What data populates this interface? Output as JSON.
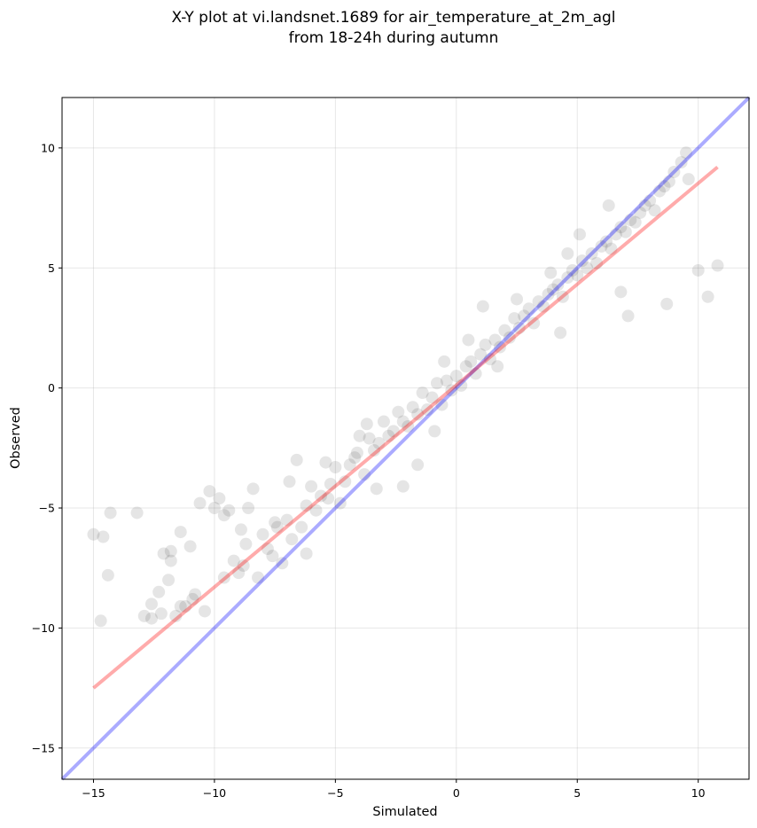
{
  "chart_data": {
    "type": "scatter",
    "title_line1": "X-Y plot at vi.landsnet.1689 for air_temperature_at_2m_agl",
    "title_line2": "from 18-24h during autumn",
    "xlabel": "Simulated",
    "ylabel": "Observed",
    "xlim": [
      -16.3,
      12.1
    ],
    "ylim": [
      -16.3,
      12.1
    ],
    "xticks": [
      -15,
      -10,
      -5,
      0,
      5,
      10
    ],
    "yticks": [
      -15,
      -10,
      -5,
      0,
      5,
      10
    ],
    "xtick_labels": [
      "−15",
      "−10",
      "−5",
      "0",
      "5",
      "10"
    ],
    "ytick_labels": [
      "−15",
      "−10",
      "−5",
      "0",
      "5",
      "10"
    ],
    "grid": true,
    "point_color": "#000000",
    "point_alpha": 0.1,
    "lines": [
      {
        "role": "one-to-one",
        "color": "#0000ff",
        "alpha": 0.33,
        "x": [
          -16.3,
          12.1
        ],
        "y": [
          -16.3,
          12.1
        ]
      },
      {
        "role": "regression",
        "color": "#ff0000",
        "alpha": 0.33,
        "x": [
          -15.0,
          10.8
        ],
        "y": [
          -12.5,
          9.2
        ]
      }
    ],
    "series": [
      {
        "x": [
          -15.0,
          -14.7,
          -14.6,
          -14.4,
          -14.3,
          -13.2,
          -12.9,
          -12.6,
          -12.3,
          -12.1,
          -11.9,
          -11.8,
          -11.6,
          -11.4,
          -11.2,
          -11.0,
          -10.8,
          -10.6,
          -10.4,
          -10.2,
          -10.0,
          -9.8,
          -9.6,
          -9.4,
          -9.2,
          -9.0,
          -8.8,
          -8.6,
          -8.4,
          -8.2,
          -8.0,
          -7.8,
          -7.6,
          -7.4,
          -7.2,
          -7.0,
          -6.8,
          -6.6,
          -6.4,
          -6.2,
          -6.0,
          -5.8,
          -5.6,
          -5.4,
          -5.2,
          -5.0,
          -4.8,
          -4.6,
          -4.4,
          -4.2,
          -4.0,
          -3.8,
          -3.6,
          -3.4,
          -3.2,
          -3.0,
          -2.8,
          -2.6,
          -2.4,
          -2.2,
          -2.0,
          -1.8,
          -1.6,
          -1.4,
          -1.2,
          -1.0,
          -0.8,
          -0.6,
          -0.4,
          -0.2,
          0.0,
          0.2,
          0.4,
          0.6,
          0.8,
          1.0,
          1.2,
          1.4,
          1.6,
          1.8,
          2.0,
          2.2,
          2.4,
          2.6,
          2.8,
          3.0,
          3.2,
          3.4,
          3.6,
          3.8,
          4.0,
          4.2,
          4.4,
          4.6,
          4.8,
          5.0,
          5.2,
          5.4,
          5.6,
          5.8,
          6.0,
          6.2,
          6.4,
          6.6,
          6.8,
          7.0,
          7.2,
          7.4,
          7.6,
          7.8,
          8.0,
          8.2,
          8.4,
          8.6,
          8.8,
          9.0,
          9.3,
          9.6,
          10.0,
          10.4,
          10.8,
          -12.6,
          -12.2,
          -11.8,
          -10.9,
          -9.6,
          -8.7,
          -7.5,
          -6.9,
          -5.3,
          -4.1,
          -3.7,
          -2.2,
          -1.6,
          -0.5,
          0.5,
          1.1,
          2.5,
          3.9,
          4.6,
          5.1,
          6.3,
          7.1,
          8.7,
          9.5,
          -11.4,
          -8.9,
          -6.2,
          -3.3,
          -0.9,
          1.7,
          4.3,
          6.8
        ],
        "y": [
          -6.1,
          -9.7,
          -6.2,
          -7.8,
          -5.2,
          -5.2,
          -9.5,
          -9.0,
          -8.5,
          -6.9,
          -8.0,
          -7.2,
          -9.5,
          -6.0,
          -9.1,
          -6.6,
          -8.6,
          -4.8,
          -9.3,
          -4.3,
          -5.0,
          -4.6,
          -5.3,
          -5.1,
          -7.2,
          -7.7,
          -7.4,
          -5.0,
          -4.2,
          -7.9,
          -6.1,
          -6.7,
          -7.0,
          -5.8,
          -7.3,
          -5.5,
          -6.3,
          -3.0,
          -5.8,
          -4.9,
          -4.1,
          -5.1,
          -4.5,
          -3.1,
          -4.0,
          -3.3,
          -4.8,
          -3.9,
          -3.2,
          -2.9,
          -2.0,
          -3.6,
          -2.1,
          -2.6,
          -2.3,
          -1.4,
          -2.0,
          -1.8,
          -1.0,
          -1.4,
          -1.6,
          -0.8,
          -1.1,
          -0.2,
          -0.9,
          -0.4,
          0.2,
          -0.7,
          0.3,
          -0.1,
          0.5,
          0.1,
          0.9,
          1.1,
          0.6,
          1.4,
          1.8,
          1.2,
          2.0,
          1.7,
          2.4,
          2.1,
          2.9,
          2.5,
          3.0,
          3.3,
          2.7,
          3.6,
          3.4,
          3.9,
          4.1,
          4.3,
          3.8,
          4.6,
          4.9,
          4.7,
          5.3,
          5.0,
          5.6,
          5.2,
          5.9,
          6.1,
          5.8,
          6.4,
          6.7,
          6.5,
          7.0,
          6.9,
          7.3,
          7.6,
          7.8,
          7.4,
          8.2,
          8.4,
          8.6,
          9.0,
          9.4,
          8.7,
          4.9,
          3.8,
          5.1,
          -9.6,
          -9.4,
          -6.8,
          -8.8,
          -7.9,
          -6.5,
          -5.6,
          -3.9,
          -4.6,
          -2.7,
          -1.5,
          -4.1,
          -3.2,
          1.1,
          2.0,
          3.4,
          3.7,
          4.8,
          5.6,
          6.4,
          7.6,
          3.0,
          3.5,
          9.8,
          -9.1,
          -5.9,
          -6.9,
          -4.2,
          -1.8,
          0.9,
          2.3,
          4.0
        ]
      }
    ]
  }
}
